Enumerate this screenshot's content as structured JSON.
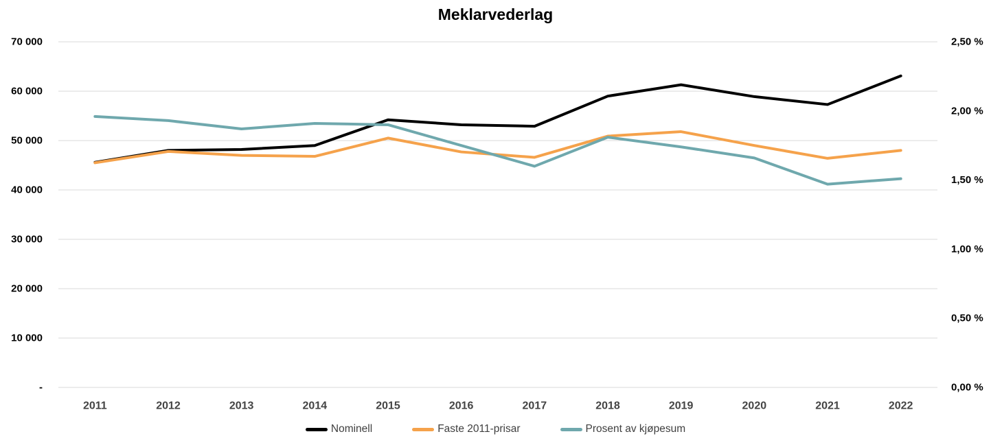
{
  "chart_data": {
    "type": "line",
    "title": "Meklarvederlag",
    "categories": [
      "2011",
      "2012",
      "2013",
      "2014",
      "2015",
      "2016",
      "2017",
      "2018",
      "2019",
      "2020",
      "2021",
      "2022"
    ],
    "series": [
      {
        "name": "Nominell",
        "axis": "left",
        "color": "#000000",
        "values": [
          45600,
          48000,
          48200,
          49000,
          54200,
          53200,
          52900,
          59000,
          61300,
          58900,
          57300,
          63100
        ]
      },
      {
        "name": "Faste 2011-prisar",
        "axis": "left",
        "color": "#F5A24B",
        "values": [
          45500,
          47800,
          47000,
          46800,
          50500,
          47700,
          46600,
          50900,
          51800,
          49000,
          46400,
          48000
        ]
      },
      {
        "name": "Prosent av kjøpesum",
        "axis": "right",
        "color": "#6FA8AD",
        "values": [
          1.96,
          1.93,
          1.87,
          1.91,
          1.9,
          1.75,
          1.6,
          1.81,
          1.74,
          1.66,
          1.47,
          1.51
        ]
      }
    ],
    "y_left": {
      "min": 0,
      "max": 70000,
      "ticks": [
        {
          "value": 70000,
          "label": "70 000"
        },
        {
          "value": 60000,
          "label": "60 000"
        },
        {
          "value": 50000,
          "label": "50 000"
        },
        {
          "value": 40000,
          "label": "40 000"
        },
        {
          "value": 30000,
          "label": "30 000"
        },
        {
          "value": 20000,
          "label": "20 000"
        },
        {
          "value": 10000,
          "label": "10 000"
        },
        {
          "value": 0,
          "label": "-"
        }
      ]
    },
    "y_right": {
      "min": 0,
      "max": 2.5,
      "ticks": [
        {
          "value": 2.5,
          "label": "2,50 %"
        },
        {
          "value": 2.0,
          "label": "2,00 %"
        },
        {
          "value": 1.5,
          "label": "1,50 %"
        },
        {
          "value": 1.0,
          "label": "1,00 %"
        },
        {
          "value": 0.5,
          "label": "0,50 %"
        },
        {
          "value": 0.0,
          "label": "0,00 %"
        }
      ]
    },
    "grid": true,
    "legend_position": "bottom"
  },
  "colors": {
    "background": "#FFFFFF",
    "gridline": "#D9D9D9",
    "axis_label": "#000000",
    "x_label": "#444444",
    "legend_text": "#3F3F3F"
  }
}
